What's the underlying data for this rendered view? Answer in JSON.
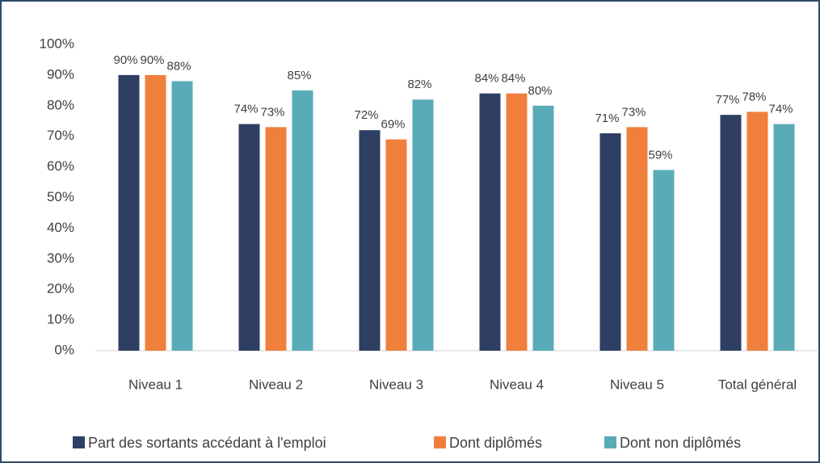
{
  "chart_data": {
    "type": "bar",
    "categories": [
      "Niveau 1",
      "Niveau 2",
      "Niveau 3",
      "Niveau 4",
      "Niveau 5",
      "Total général"
    ],
    "series": [
      {
        "name": "Part des sortants accédant à l'emploi",
        "color": "#2e3f63",
        "values": [
          90,
          74,
          72,
          84,
          71,
          77
        ],
        "value_labels": [
          "90%",
          "74%",
          "72%",
          "84%",
          "71%",
          "77%"
        ]
      },
      {
        "name": "Dont diplômés",
        "color": "#f07f3c",
        "values": [
          90,
          73,
          69,
          84,
          73,
          78
        ],
        "value_labels": [
          "90%",
          "73%",
          "69%",
          "84%",
          "73%",
          "78%"
        ]
      },
      {
        "name": "Dont non diplômés",
        "color": "#5aabb8",
        "values": [
          88,
          85,
          82,
          80,
          59,
          74
        ],
        "value_labels": [
          "88%",
          "85%",
          "82%",
          "80%",
          "59%",
          "74%"
        ]
      }
    ],
    "ylim": [
      0,
      100
    ],
    "yticks": [
      {
        "value": 0,
        "label": "0%"
      },
      {
        "value": 10,
        "label": "10%"
      },
      {
        "value": 20,
        "label": "20%"
      },
      {
        "value": 30,
        "label": "30%"
      },
      {
        "value": 40,
        "label": "40%"
      },
      {
        "value": 50,
        "label": "50%"
      },
      {
        "value": 60,
        "label": "60%"
      },
      {
        "value": 70,
        "label": "70%"
      },
      {
        "value": 80,
        "label": "80%"
      },
      {
        "value": 90,
        "label": "90%"
      },
      {
        "value": 100,
        "label": "100%"
      }
    ],
    "grid": false,
    "legend": "bottom"
  }
}
